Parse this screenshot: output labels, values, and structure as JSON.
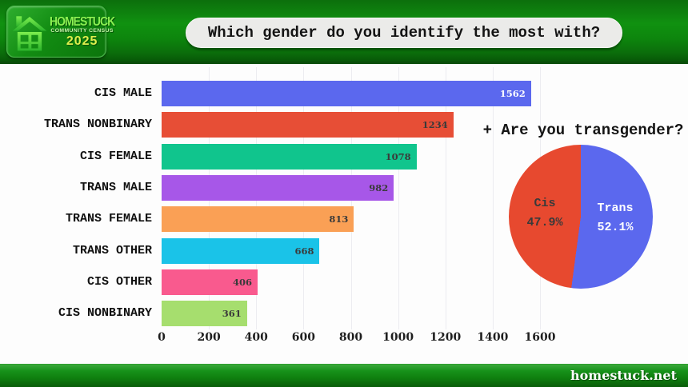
{
  "logo": {
    "title": "HOMESTUCK",
    "subtitle": "COMMUNITY CENSUS",
    "year": "2025"
  },
  "header": {
    "question": "Which gender do you identify the most with?"
  },
  "footer": {
    "site": "homestuck.net"
  },
  "colors": {
    "banner_green": "#0d860d",
    "background": "#fdfdfd",
    "grid": "#ececf1"
  },
  "chart_data": [
    {
      "type": "bar",
      "orientation": "horizontal",
      "title": "Which gender do you identify the most with?",
      "categories": [
        "CIS MALE",
        "TRANS NONBINARY",
        "CIS FEMALE",
        "TRANS MALE",
        "TRANS FEMALE",
        "TRANS OTHER",
        "CIS OTHER",
        "CIS NONBINARY"
      ],
      "values": [
        1562,
        1234,
        1078,
        982,
        813,
        668,
        406,
        361
      ],
      "bar_colors": [
        "#5b68ee",
        "#e74e36",
        "#10c58d",
        "#a757e8",
        "#faa055",
        "#1ac3e8",
        "#f95a8e",
        "#a6de6e"
      ],
      "value_label_colors": [
        "#ffffff",
        "#3a3a3a",
        "#3a3a3a",
        "#3a3a3a",
        "#3a3a3a",
        "#3a3a3a",
        "#3a3a3a",
        "#3a3a3a"
      ],
      "xlabel": "",
      "ylabel": "",
      "xlim": [
        0,
        1600
      ],
      "xticks": [
        0,
        200,
        400,
        600,
        800,
        1000,
        1200,
        1400,
        1600
      ],
      "grid": true,
      "legend": false
    },
    {
      "type": "pie",
      "title": "+ Are you transgender?",
      "slices": [
        {
          "label": "Trans",
          "pct": 52.1,
          "display_pct": "52.1%",
          "color": "#5b68ee",
          "text_color": "#ffffff"
        },
        {
          "label": "Cis",
          "pct": 47.9,
          "display_pct": "47.9%",
          "color": "#e7492f",
          "text_color": "#3a3a3a"
        }
      ],
      "start_angle": "top",
      "direction": "clockwise"
    }
  ]
}
